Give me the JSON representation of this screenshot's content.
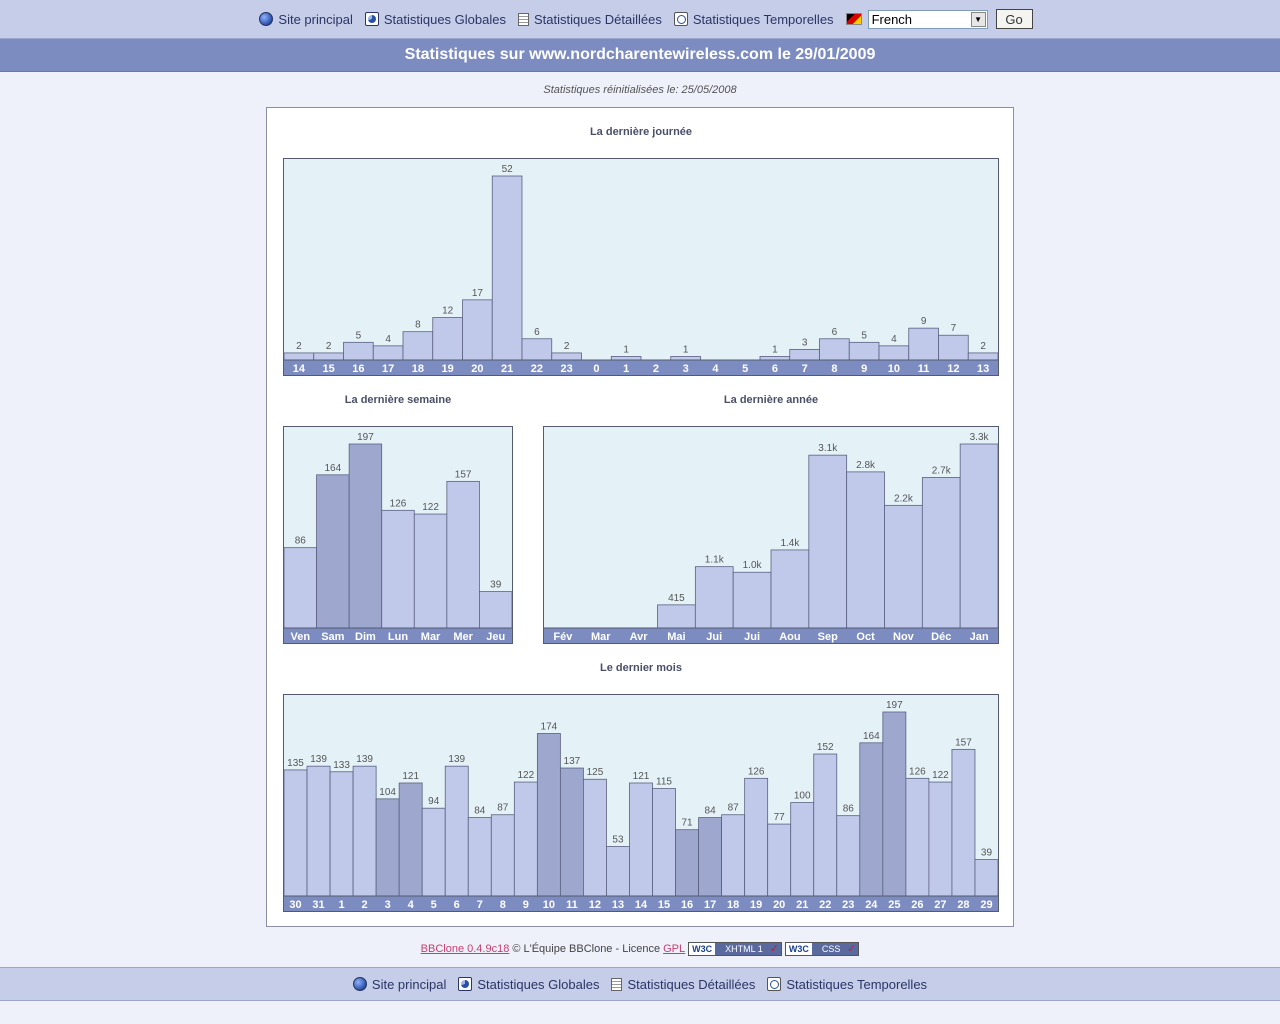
{
  "nav": {
    "items": [
      "Site principal",
      "Statistiques Globales",
      "Statistiques Détaillées",
      "Statistiques Temporelles"
    ],
    "language": "French",
    "go_label": "Go"
  },
  "header": {
    "title": "Statistiques sur www.nordcharentewireless.com le 29/01/2009"
  },
  "reset_note": "Statistiques réinitialisées le: 25/05/2008",
  "chart_data": [
    {
      "type": "bar",
      "title": "La dernière journée",
      "categories": [
        "14",
        "15",
        "16",
        "17",
        "18",
        "19",
        "20",
        "21",
        "22",
        "23",
        "0",
        "1",
        "2",
        "3",
        "4",
        "5",
        "6",
        "7",
        "8",
        "9",
        "10",
        "11",
        "12",
        "13"
      ],
      "values": [
        2,
        2,
        5,
        4,
        8,
        12,
        17,
        52,
        6,
        2,
        0,
        1,
        0,
        1,
        0,
        0,
        1,
        3,
        6,
        5,
        4,
        9,
        7,
        2
      ],
      "labels": [
        "2",
        "2",
        "5",
        "4",
        "8",
        "12",
        "17",
        "52",
        "6",
        "2",
        "",
        "1",
        "",
        "1",
        "",
        "",
        "1",
        "3",
        "6",
        "5",
        "4",
        "9",
        "7",
        "2"
      ],
      "highlight": [],
      "ylim": [
        0,
        52
      ]
    },
    {
      "type": "bar",
      "title": "La dernière semaine",
      "categories": [
        "Ven",
        "Sam",
        "Dim",
        "Lun",
        "Mar",
        "Mer",
        "Jeu"
      ],
      "values": [
        86,
        164,
        197,
        126,
        122,
        157,
        39
      ],
      "labels": [
        "86",
        "164",
        "197",
        "126",
        "122",
        "157",
        "39"
      ],
      "highlight": [
        1,
        2
      ],
      "ylim": [
        0,
        197
      ]
    },
    {
      "type": "bar",
      "title": "La dernière année",
      "categories": [
        "Fév",
        "Mar",
        "Avr",
        "Mai",
        "Jui",
        "Jui",
        "Aou",
        "Sep",
        "Oct",
        "Nov",
        "Déc",
        "Jan"
      ],
      "values": [
        0,
        0,
        0,
        415,
        1100,
        1000,
        1400,
        3100,
        2800,
        2200,
        2700,
        3300
      ],
      "labels": [
        "",
        "",
        "",
        "415",
        "1.1k",
        "1.0k",
        "1.4k",
        "3.1k",
        "2.8k",
        "2.2k",
        "2.7k",
        "3.3k"
      ],
      "highlight": [],
      "ylim": [
        0,
        3300
      ]
    },
    {
      "type": "bar",
      "title": "Le dernier mois",
      "categories": [
        "30",
        "31",
        "1",
        "2",
        "3",
        "4",
        "5",
        "6",
        "7",
        "8",
        "9",
        "10",
        "11",
        "12",
        "13",
        "14",
        "15",
        "16",
        "17",
        "18",
        "19",
        "20",
        "21",
        "22",
        "23",
        "24",
        "25",
        "26",
        "27",
        "28",
        "29"
      ],
      "values": [
        135,
        139,
        133,
        139,
        104,
        121,
        94,
        139,
        84,
        87,
        122,
        174,
        137,
        125,
        53,
        121,
        115,
        71,
        84,
        87,
        126,
        77,
        100,
        152,
        86,
        164,
        197,
        126,
        122,
        157,
        39
      ],
      "labels": [
        "135",
        "139",
        "133",
        "139",
        "104",
        "121",
        "94",
        "139",
        "84",
        "87",
        "122",
        "174",
        "137",
        "125",
        "53",
        "121",
        "115",
        "71",
        "84",
        "87",
        "126",
        "77",
        "100",
        "152",
        "86",
        "164",
        "197",
        "126",
        "122",
        "157",
        "39"
      ],
      "highlight": [
        4,
        5,
        11,
        12,
        17,
        18,
        25,
        26
      ],
      "ylim": [
        0,
        197
      ]
    }
  ],
  "footer": {
    "bbclone_link": "BBClone 0.4.9c18",
    "credit_text": "© L'Équipe BBClone - Licence",
    "gpl_link": "GPL",
    "badge_w3c": "W3C",
    "badge_xhtml": "XHTML 1",
    "badge_css": "CSS"
  },
  "colors": {
    "bar": "#c0c9ea",
    "bar_highlight": "#9ea8cf",
    "plot_bg": "#e4f2f8",
    "axis_bar": "#7c8cc0"
  }
}
